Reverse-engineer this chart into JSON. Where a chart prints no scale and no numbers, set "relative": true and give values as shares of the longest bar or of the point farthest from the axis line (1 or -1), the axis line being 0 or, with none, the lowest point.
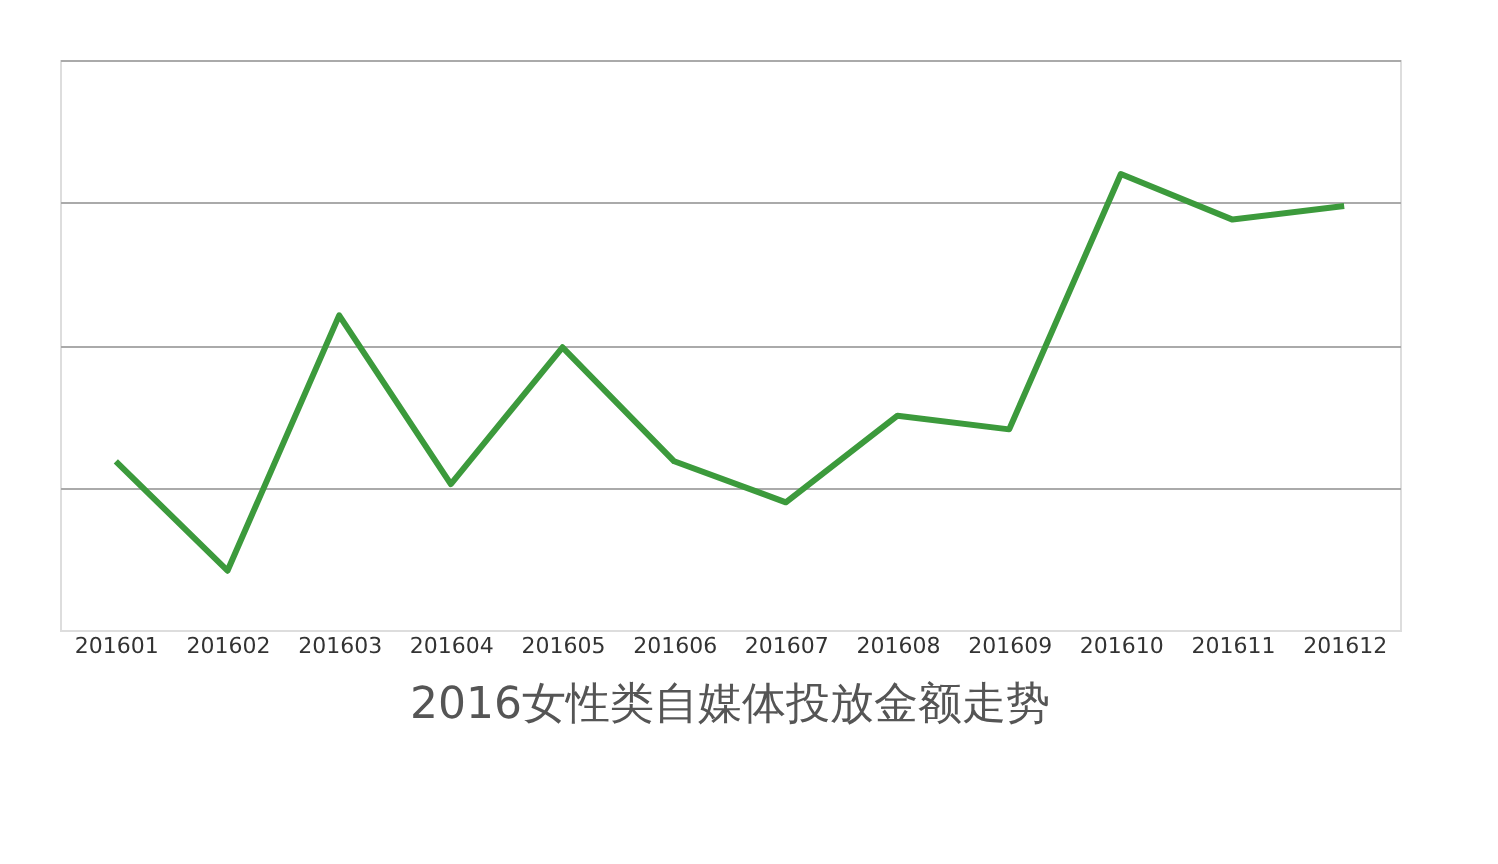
{
  "chart_data": {
    "type": "line",
    "title": "2016女性类自媒体投放金额走势",
    "categories": [
      "201601",
      "201602",
      "201603",
      "201604",
      "201605",
      "201606",
      "201607",
      "201608",
      "201609",
      "201610",
      "201611",
      "201612"
    ],
    "series": [
      {
        "color": "#3c9a3c",
        "values": [
          0.37,
          0.13,
          0.69,
          0.32,
          0.62,
          0.37,
          0.28,
          0.47,
          0.44,
          1,
          0.9,
          0.93
        ]
      }
    ],
    "relative": true,
    "grid": "y",
    "marker": "none",
    "line_style": "solid"
  }
}
